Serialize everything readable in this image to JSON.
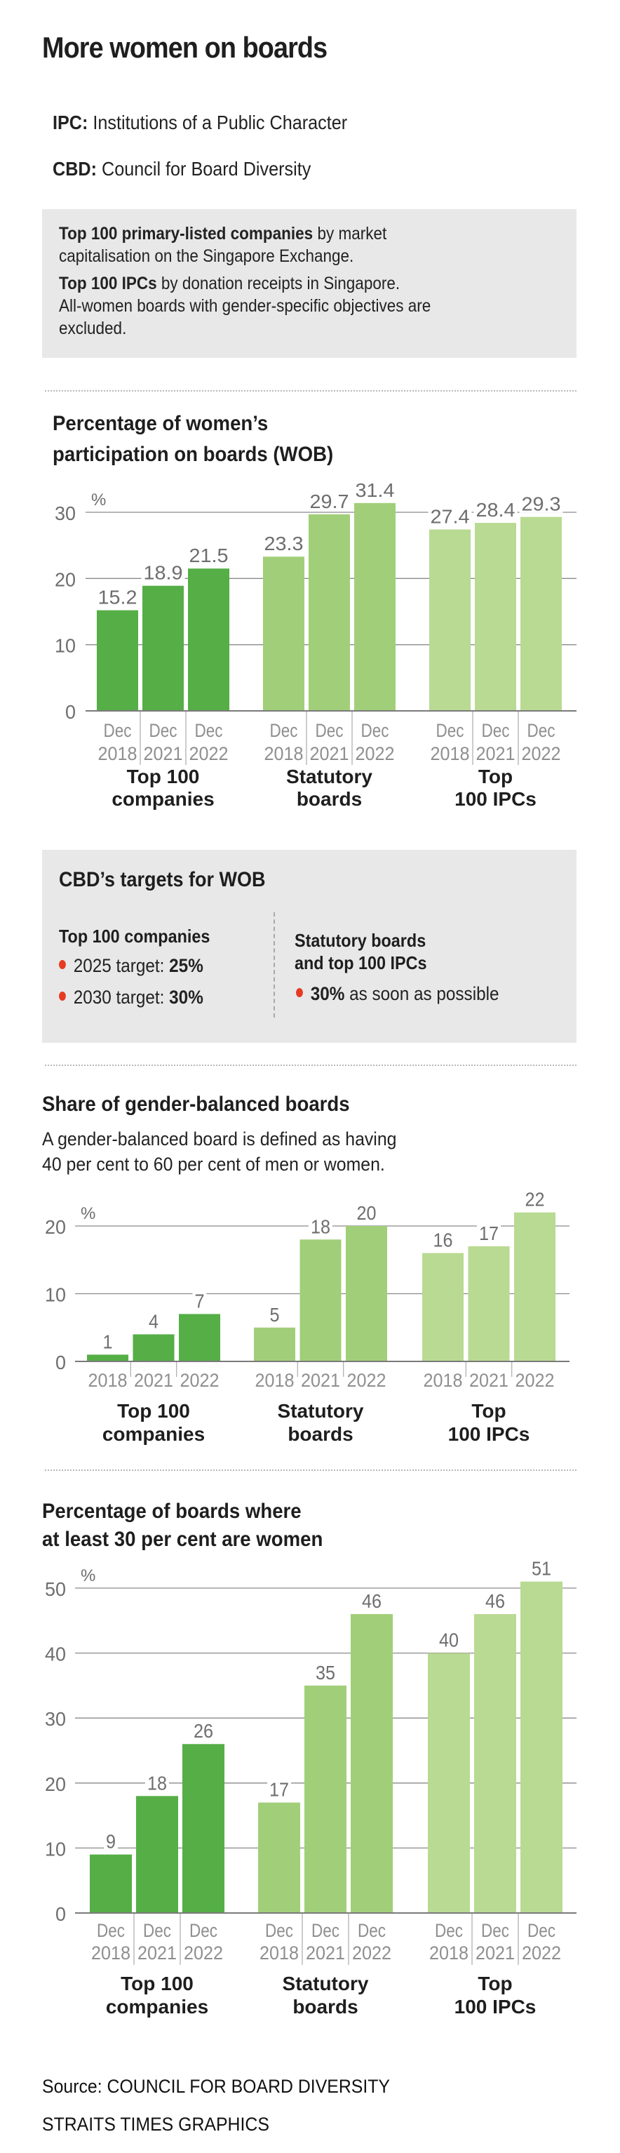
{
  "header": {
    "title": "More women on boards"
  },
  "definitions": [
    {
      "term": "IPC:",
      "text": " Institutions of a Public Character"
    },
    {
      "term": "CBD:",
      "text": " Council for Board Diversity"
    }
  ],
  "info_box": {
    "line1_bold": "Top 100 primary-listed companies",
    "line1_rest": " by market",
    "line2": "capitalisation on the Singapore Exchange.",
    "line3_bold": "Top 100 IPCs",
    "line3_rest": " by donation receipts in Singapore.",
    "line4": "All-women boards with gender-specific objectives are",
    "line5": "excluded."
  },
  "targets": {
    "title": "CBD’s targets for WOB",
    "left_heading": "Top 100 companies",
    "left_items": [
      {
        "label": "2025 target: ",
        "value": "25%"
      },
      {
        "label": "2030 target: ",
        "value": "30%"
      }
    ],
    "right_heading_line1": "Statutory boards",
    "right_heading_line2": "and top 100 IPCs",
    "right_item": {
      "value": "30%",
      "label": " as soon as possible"
    },
    "bullet_color": "#e63a22"
  },
  "colors": {
    "companies": "#55ae46",
    "statutory": "#a1cf79",
    "ipcs": "#b9da92",
    "grid": "#8a8a8a",
    "tick_text": "#6e6e6e",
    "year_text": "#8f8f8f"
  },
  "chart_data": [
    {
      "type": "bar",
      "title_line1": "Percentage of women’s",
      "title_line2": "participation on boards (WOB)",
      "ylabel": "%",
      "ylim": [
        0,
        30
      ],
      "yticks": [
        "0",
        "10",
        "20",
        "30"
      ],
      "grid": true,
      "year_prefix": "Dec",
      "categories": [
        "2018",
        "2021",
        "2022"
      ],
      "groups": [
        {
          "name_line1": "Top 100",
          "name_line2": "companies",
          "values": [
            15.2,
            18.9,
            21.5
          ],
          "labels": [
            "15.2",
            "18.9",
            "21.5"
          ]
        },
        {
          "name_line1": "Statutory",
          "name_line2": "boards",
          "values": [
            23.3,
            29.7,
            31.4
          ],
          "labels": [
            "23.3",
            "29.7",
            "31.4"
          ]
        },
        {
          "name_line1": "Top",
          "name_line2": "100 IPCs",
          "values": [
            27.4,
            28.4,
            29.3
          ],
          "labels": [
            "27.4",
            "28.4",
            "29.3"
          ]
        }
      ]
    },
    {
      "type": "bar",
      "title_line1": "Share of gender-balanced boards",
      "subtitle_line1": "A gender-balanced board is defined as having",
      "subtitle_line2": "40 per cent to 60 per cent of men or women.",
      "ylabel": "%",
      "ylim": [
        0,
        20
      ],
      "yticks": [
        "0",
        "10",
        "20"
      ],
      "grid": true,
      "year_prefix": "",
      "categories": [
        "2018",
        "2021",
        "2022"
      ],
      "groups": [
        {
          "name_line1": "Top 100",
          "name_line2": "companies",
          "values": [
            1,
            4,
            7
          ],
          "labels": [
            "1",
            "4",
            "7"
          ]
        },
        {
          "name_line1": "Statutory",
          "name_line2": "boards",
          "values": [
            5,
            18,
            20
          ],
          "labels": [
            "5",
            "18",
            "20"
          ]
        },
        {
          "name_line1": "Top",
          "name_line2": "100 IPCs",
          "values": [
            16,
            17,
            22
          ],
          "labels": [
            "16",
            "17",
            "22"
          ]
        }
      ]
    },
    {
      "type": "bar",
      "title_line1": "Percentage of boards where",
      "title_line2": "at least 30 per cent are women",
      "ylabel": "%",
      "ylim": [
        0,
        50
      ],
      "yticks": [
        "0",
        "10",
        "20",
        "30",
        "40",
        "50"
      ],
      "grid": true,
      "year_prefix": "Dec",
      "categories": [
        "2018",
        "2021",
        "2022"
      ],
      "groups": [
        {
          "name_line1": "Top 100",
          "name_line2": "companies",
          "values": [
            9,
            18,
            26
          ],
          "labels": [
            "9",
            "18",
            "26"
          ]
        },
        {
          "name_line1": "Statutory",
          "name_line2": "boards",
          "values": [
            17,
            35,
            46
          ],
          "labels": [
            "17",
            "35",
            "46"
          ]
        },
        {
          "name_line1": "Top",
          "name_line2": "100 IPCs",
          "values": [
            40,
            46,
            51
          ],
          "labels": [
            "40",
            "46",
            "51"
          ]
        }
      ]
    }
  ],
  "footer": {
    "source": "Source: COUNCIL FOR BOARD DIVERSITY",
    "credit": "STRAITS TIMES GRAPHICS"
  }
}
